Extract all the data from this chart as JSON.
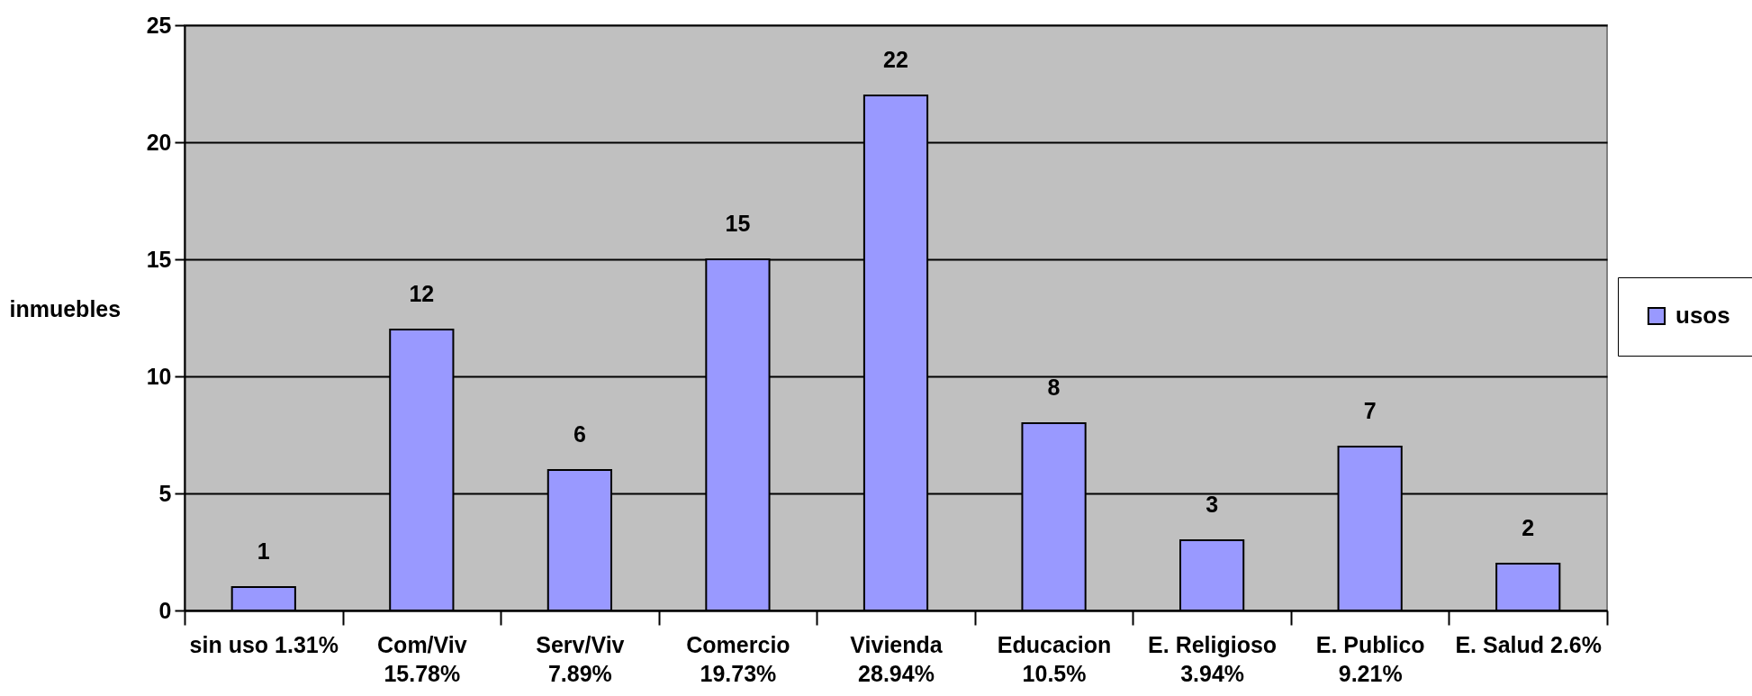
{
  "chart_data": {
    "type": "bar",
    "ylabel": "inmuebles",
    "categories": [
      "sin uso 1.31%",
      "Com/Viv 15.78%",
      "Serv/Viv 7.89%",
      "Comercio 19.73%",
      "Vivienda 28.94%",
      "Educacion 10.5%",
      "E. Religioso 3.94%",
      "E. Publico 9.21%",
      "E. Salud 2.6%"
    ],
    "series": [
      {
        "name": "usos",
        "color": "#9999ff",
        "values": [
          1,
          12,
          6,
          15,
          22,
          8,
          3,
          7,
          2
        ]
      }
    ],
    "ylim": [
      0,
      25
    ],
    "yticks": [
      0,
      5,
      10,
      15,
      20,
      25
    ],
    "grid": "y",
    "data_labels": true,
    "legend": "right"
  }
}
